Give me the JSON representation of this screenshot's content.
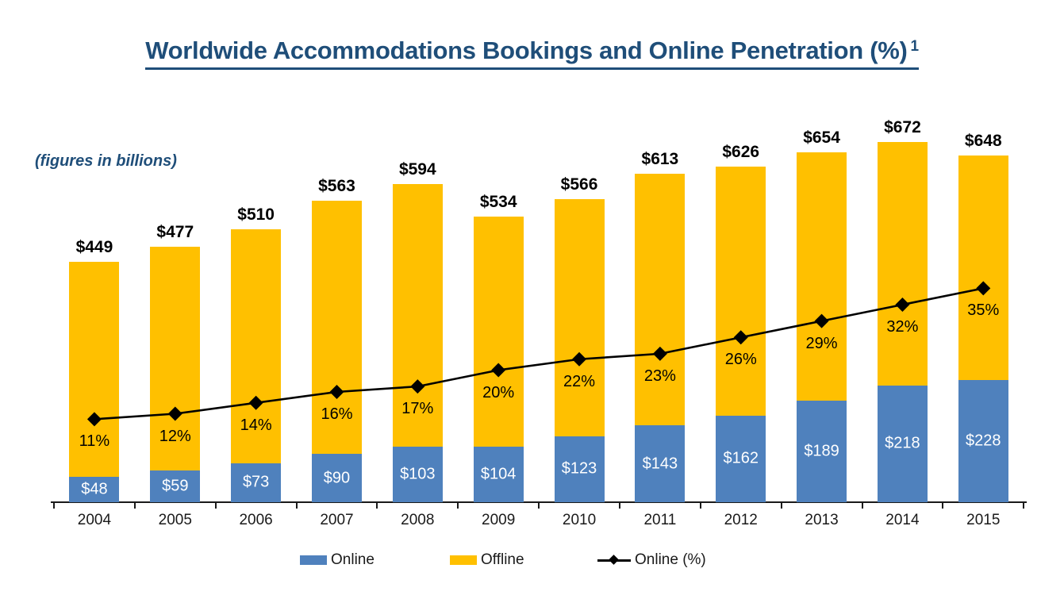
{
  "title": {
    "text": "Worldwide Accommodations Bookings and Online Penetration (%)",
    "superscript": "1"
  },
  "note": "(figures in billions)",
  "colors": {
    "title_text": "#1F4E79",
    "online_bar": "#4F81BD",
    "offline_bar": "#FFC000",
    "line": "#000000",
    "total_label": "#000000",
    "online_value_label": "#FFFFFF",
    "axis": "#1a1a1a"
  },
  "legend": [
    {
      "label": "Online",
      "marker": "square",
      "color": "#4F81BD"
    },
    {
      "label": "Offline",
      "marker": "square",
      "color": "#FFC000"
    },
    {
      "label": "Online (%)",
      "marker": "line-diamond",
      "color": "#000000"
    }
  ],
  "chart_data": {
    "type": "bar",
    "subtype": "stacked-column-with-percent-line",
    "title": "Worldwide Accommodations Bookings and Online Penetration (%)",
    "footnote_marker": "1",
    "note": "(figures in billions)",
    "unit": "USD billions",
    "categories": [
      "2004",
      "2005",
      "2006",
      "2007",
      "2008",
      "2009",
      "2010",
      "2011",
      "2012",
      "2013",
      "2014",
      "2015"
    ],
    "series": [
      {
        "name": "Online",
        "type": "bar",
        "stack": "bookings",
        "color": "#4F81BD",
        "label_prefix": "$",
        "label_color": "#FFFFFF",
        "values": [
          48,
          59,
          73,
          90,
          103,
          104,
          123,
          143,
          162,
          189,
          218,
          228
        ]
      },
      {
        "name": "Offline",
        "type": "bar",
        "stack": "bookings",
        "color": "#FFC000",
        "values": [
          401,
          418,
          437,
          473,
          491,
          430,
          443,
          470,
          464,
          465,
          454,
          420
        ]
      },
      {
        "name": "Online (%)",
        "type": "line",
        "color": "#000000",
        "marker": "diamond",
        "label_suffix": "%",
        "values": [
          11,
          12,
          14,
          16,
          17,
          20,
          22,
          23,
          26,
          29,
          32,
          35
        ]
      }
    ],
    "totals": {
      "label_prefix": "$",
      "values": [
        449,
        477,
        510,
        563,
        594,
        534,
        566,
        613,
        626,
        654,
        672,
        648
      ]
    },
    "axes": {
      "x": {
        "type": "category"
      },
      "y_left": {
        "visible": false,
        "range": [
          0,
          700
        ]
      },
      "y_right": {
        "visible": false,
        "range_percent": [
          0,
          40
        ]
      }
    },
    "gridlines": false,
    "legend_position": "bottom"
  }
}
